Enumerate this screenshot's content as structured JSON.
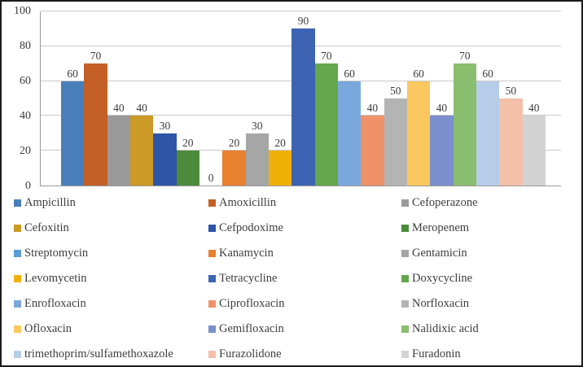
{
  "chart_data": {
    "type": "bar",
    "title": "",
    "xlabel": "",
    "ylabel": "",
    "ylim": [
      0,
      100
    ],
    "yticks": [
      0,
      20,
      40,
      60,
      80,
      100
    ],
    "grid": true,
    "data_labels": true,
    "legend_position": "bottom",
    "legend_columns": 3,
    "series": [
      {
        "name": "Ampicillin",
        "value": 60,
        "color": "#4A7EBB"
      },
      {
        "name": "Amoxicillin",
        "value": 70,
        "color": "#C45F26"
      },
      {
        "name": "Cefoperazone",
        "value": 40,
        "color": "#9A9A9A"
      },
      {
        "name": "Cefoxitin",
        "value": 40,
        "color": "#CC9A27"
      },
      {
        "name": "Cefpodoxime",
        "value": 30,
        "color": "#2E56A6"
      },
      {
        "name": "Meropenem",
        "value": 20,
        "color": "#4C8B3B"
      },
      {
        "name": "Streptomycin",
        "value": 0,
        "color": "#5B9BD5"
      },
      {
        "name": "Kanamycin",
        "value": 20,
        "color": "#E8802D"
      },
      {
        "name": "Gentamicin",
        "value": 30,
        "color": "#A6A6A6"
      },
      {
        "name": "Levomycetin",
        "value": 20,
        "color": "#EFB008"
      },
      {
        "name": "Tetracycline",
        "value": 90,
        "color": "#3C64B2"
      },
      {
        "name": "Doxycycline",
        "value": 70,
        "color": "#64A74C"
      },
      {
        "name": "Enrofloxacin",
        "value": 60,
        "color": "#79A9DC"
      },
      {
        "name": "Ciprofloxacin",
        "value": 40,
        "color": "#EF9169"
      },
      {
        "name": "Norfloxacin",
        "value": 50,
        "color": "#B4B4B4"
      },
      {
        "name": "Ofloxacin",
        "value": 60,
        "color": "#FBC860"
      },
      {
        "name": "Gemifloxacin",
        "value": 40,
        "color": "#7B8FCC"
      },
      {
        "name": "Nalidixic acid",
        "value": 70,
        "color": "#8ABD6E"
      },
      {
        "name": "trimethoprim/sulfamethoxazole",
        "value": 60,
        "color": "#B5CDE9"
      },
      {
        "name": "Furazolidone",
        "value": 50,
        "color": "#F4C0A9"
      },
      {
        "name": "Furadonin",
        "value": 40,
        "color": "#D3D3D3"
      }
    ]
  },
  "style": {
    "figure_border_color": "#1c1c1c",
    "axis_line_color": "#9a9a9a",
    "gridline_color": "#c9c9c9",
    "text_color": "#3d3d3d",
    "background_color": "#ffffff"
  }
}
